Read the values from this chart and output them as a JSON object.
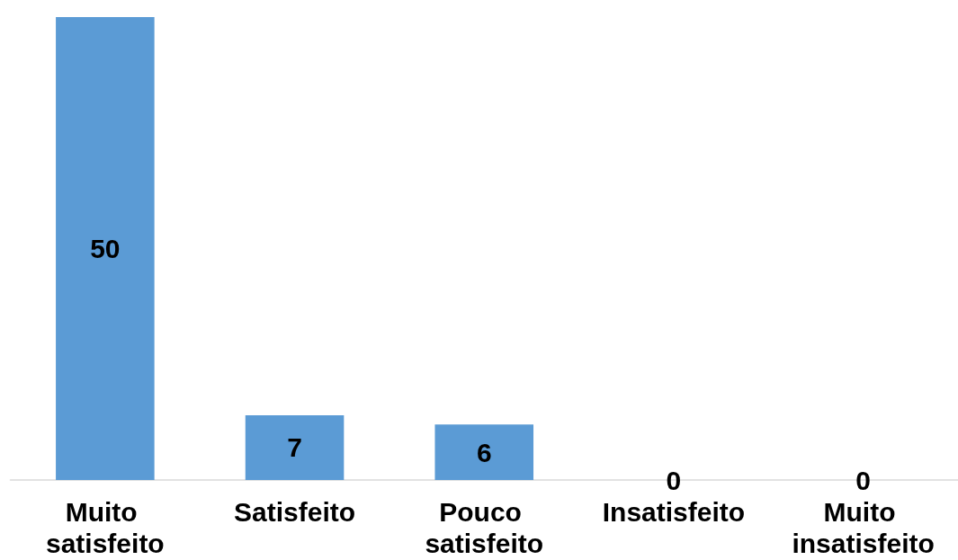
{
  "chart_data": {
    "type": "bar",
    "categories": [
      "Muito satisfeito",
      "Satisfeito",
      "Pouco satisfeito",
      "Insatisfeito",
      "Muito insatisfeito"
    ],
    "values": [
      50,
      7,
      6,
      0,
      0
    ],
    "color": "#5b9bd5",
    "data_labels": true,
    "tick_labels": "x"
  }
}
